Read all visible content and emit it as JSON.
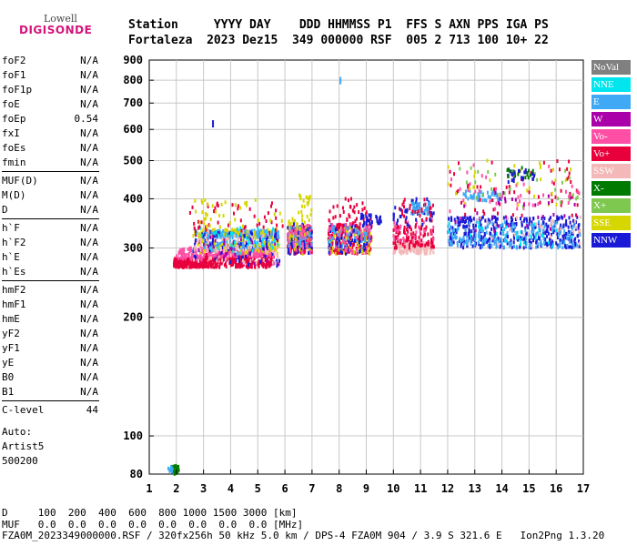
{
  "logo": {
    "top": "Lowell",
    "main": "DIGISONDE"
  },
  "header": {
    "line1": "Station     YYYY DAY    DDD HHMMSS P1  FFS S AXN PPS IGA PS",
    "line2": "Fortaleza  2023 Dez15  349 000000 RSF  005 2 713 100 10+ 22"
  },
  "params": [
    {
      "label": "foF2",
      "value": "N/A"
    },
    {
      "label": "foF1",
      "value": "N/A"
    },
    {
      "label": "foF1p",
      "value": "N/A"
    },
    {
      "label": "foE",
      "value": "N/A"
    },
    {
      "label": "foEp",
      "value": "0.54"
    },
    {
      "label": "fxI",
      "value": "N/A"
    },
    {
      "label": "foEs",
      "value": "N/A"
    },
    {
      "label": "fmin",
      "value": "N/A"
    },
    {
      "label": "MUF(D)",
      "value": "N/A"
    },
    {
      "label": "M(D)",
      "value": "N/A"
    },
    {
      "label": "D",
      "value": "N/A"
    },
    {
      "label": "h`F",
      "value": "N/A"
    },
    {
      "label": "h`F2",
      "value": "N/A"
    },
    {
      "label": "h`E",
      "value": "N/A"
    },
    {
      "label": "h`Es",
      "value": "N/A"
    },
    {
      "label": "hmF2",
      "value": "N/A"
    },
    {
      "label": "hmF1",
      "value": "N/A"
    },
    {
      "label": "hmE",
      "value": "N/A"
    },
    {
      "label": "yF2",
      "value": "N/A"
    },
    {
      "label": "yF1",
      "value": "N/A"
    },
    {
      "label": "yE",
      "value": "N/A"
    },
    {
      "label": "B0",
      "value": "N/A"
    },
    {
      "label": "B1",
      "value": "N/A"
    },
    {
      "label": "C-level",
      "value": "44"
    }
  ],
  "auto_lines": [
    "Auto:",
    "Artist5",
    "500200"
  ],
  "legend": [
    {
      "label": "NoVal",
      "bg": "#808080",
      "fg": "#ffffff"
    },
    {
      "label": "NNE",
      "bg": "#00e5ee",
      "fg": "#ffffff"
    },
    {
      "label": "E",
      "bg": "#3fa9f5",
      "fg": "#ffffff"
    },
    {
      "label": "W",
      "bg": "#aa00aa",
      "fg": "#ffffff"
    },
    {
      "label": "Vo-",
      "bg": "#ff4fa5",
      "fg": "#ffffff"
    },
    {
      "label": "Vo+",
      "bg": "#e8003d",
      "fg": "#ffffff"
    },
    {
      "label": "SSW",
      "bg": "#f4b8b8",
      "fg": "#ffffff"
    },
    {
      "label": "X-",
      "bg": "#007a00",
      "fg": "#ffffff"
    },
    {
      "label": "X+",
      "bg": "#7ec850",
      "fg": "#ffffff"
    },
    {
      "label": "SSE",
      "bg": "#d6d600",
      "fg": "#ffffff"
    },
    {
      "label": "NNW",
      "bg": "#1a1ad6",
      "fg": "#ffffff"
    }
  ],
  "footer": {
    "line1": "D     100  200  400  600  800 1000 1500 3000 [km]",
    "line2": "MUF   0.0  0.0  0.0  0.0  0.0  0.0  0.0  0.0 [MHz]",
    "line3": "FZA0M_2023349000000.RSF / 320fx256h 50 kHz 5.0 km / DPS-4 FZA0M 904 / 3.9 S 321.6 E   Ion2Png 1.3.20"
  },
  "chart_data": {
    "type": "scatter",
    "title": "",
    "xlabel": "",
    "ylabel": "",
    "xlim": [
      1,
      17
    ],
    "ylim": [
      80,
      900
    ],
    "y_scale": "log",
    "grid": true,
    "xticks": [
      1,
      2,
      3,
      4,
      5,
      6,
      7,
      8,
      9,
      10,
      11,
      12,
      13,
      14,
      15,
      16,
      17
    ],
    "yticks": [
      80,
      100,
      200,
      300,
      400,
      500,
      600,
      700,
      800,
      900
    ],
    "clusters": [
      {
        "x": [
          1.8,
          2.1
        ],
        "y": [
          80,
          84
        ],
        "n": 30,
        "color": "#007a00"
      },
      {
        "x": [
          1.7,
          1.9
        ],
        "y": [
          81,
          84
        ],
        "n": 10,
        "color": "#3fa9f5"
      },
      {
        "x": [
          1.9,
          3.0
        ],
        "y": [
          268,
          282
        ],
        "n": 220,
        "color": "#e8003d"
      },
      {
        "x": [
          2.0,
          3.0
        ],
        "y": [
          280,
          300
        ],
        "n": 80,
        "color": "#ff4fa5"
      },
      {
        "x": [
          3.0,
          5.6
        ],
        "y": [
          268,
          290
        ],
        "n": 320,
        "color": "#e8003d"
      },
      {
        "x": [
          3.0,
          5.6
        ],
        "y": [
          285,
          300
        ],
        "n": 160,
        "color": "#ff4fa5"
      },
      {
        "x": [
          3.0,
          5.6
        ],
        "y": [
          300,
          312
        ],
        "n": 120,
        "color": "#3fa9f5"
      },
      {
        "x": [
          3.0,
          5.8
        ],
        "y": [
          318,
          332
        ],
        "n": 200,
        "color": "#3fa9f5"
      },
      {
        "x": [
          2.6,
          5.8
        ],
        "y": [
          290,
          335
        ],
        "n": 140,
        "color": "#d6d600"
      },
      {
        "x": [
          2.6,
          5.8
        ],
        "y": [
          270,
          330
        ],
        "n": 60,
        "color": "#aa00aa"
      },
      {
        "x": [
          2.6,
          5.8
        ],
        "y": [
          270,
          330
        ],
        "n": 70,
        "color": "#1a1ad6"
      },
      {
        "x": [
          2.6,
          5.8
        ],
        "y": [
          275,
          330
        ],
        "n": 70,
        "color": "#f4b8b8"
      },
      {
        "x": [
          2.6,
          5.8
        ],
        "y": [
          290,
          340
        ],
        "n": 40,
        "color": "#00e5ee"
      },
      {
        "x": [
          2.5,
          6.0
        ],
        "y": [
          330,
          390
        ],
        "n": 45,
        "color": "#e8003d"
      },
      {
        "x": [
          2.5,
          6.0
        ],
        "y": [
          330,
          400
        ],
        "n": 40,
        "color": "#d6d600"
      },
      {
        "x": [
          6.1,
          7.0
        ],
        "y": [
          290,
          340
        ],
        "n": 180,
        "color": "#e8003d"
      },
      {
        "x": [
          6.1,
          7.0
        ],
        "y": [
          300,
          340
        ],
        "n": 90,
        "color": "#3fa9f5"
      },
      {
        "x": [
          6.1,
          7.0
        ],
        "y": [
          290,
          360
        ],
        "n": 60,
        "color": "#d6d600"
      },
      {
        "x": [
          6.1,
          7.0
        ],
        "y": [
          290,
          345
        ],
        "n": 40,
        "color": "#1a1ad6"
      },
      {
        "x": [
          6.1,
          7.0
        ],
        "y": [
          290,
          345
        ],
        "n": 40,
        "color": "#ff4fa5"
      },
      {
        "x": [
          6.5,
          7.0
        ],
        "y": [
          360,
          410
        ],
        "n": 20,
        "color": "#d6d600"
      },
      {
        "x": [
          7.6,
          9.2
        ],
        "y": [
          290,
          345
        ],
        "n": 220,
        "color": "#e8003d"
      },
      {
        "x": [
          7.6,
          9.2
        ],
        "y": [
          290,
          340
        ],
        "n": 70,
        "color": "#d6d600"
      },
      {
        "x": [
          7.6,
          9.2
        ],
        "y": [
          300,
          340
        ],
        "n": 60,
        "color": "#3fa9f5"
      },
      {
        "x": [
          7.6,
          9.2
        ],
        "y": [
          290,
          345
        ],
        "n": 50,
        "color": "#1a1ad6"
      },
      {
        "x": [
          7.6,
          9.2
        ],
        "y": [
          290,
          350
        ],
        "n": 40,
        "color": "#ff4fa5"
      },
      {
        "x": [
          7.6,
          9.2
        ],
        "y": [
          340,
          400
        ],
        "n": 40,
        "color": "#e8003d"
      },
      {
        "x": [
          8.8,
          9.6
        ],
        "y": [
          345,
          365
        ],
        "n": 30,
        "color": "#1a1ad6"
      },
      {
        "x": [
          10.0,
          11.5
        ],
        "y": [
          290,
          310
        ],
        "n": 120,
        "color": "#f4b8b8"
      },
      {
        "x": [
          10.0,
          11.5
        ],
        "y": [
          300,
          340
        ],
        "n": 100,
        "color": "#e8003d"
      },
      {
        "x": [
          10.0,
          11.5
        ],
        "y": [
          310,
          350
        ],
        "n": 30,
        "color": "#ff4fa5"
      },
      {
        "x": [
          10.0,
          11.5
        ],
        "y": [
          340,
          400
        ],
        "n": 45,
        "color": "#1a1ad6"
      },
      {
        "x": [
          10.6,
          11.4
        ],
        "y": [
          365,
          390
        ],
        "n": 40,
        "color": "#3fa9f5"
      },
      {
        "x": [
          10.0,
          11.5
        ],
        "y": [
          340,
          400
        ],
        "n": 30,
        "color": "#e8003d"
      },
      {
        "x": [
          12.0,
          16.9
        ],
        "y": [
          300,
          360
        ],
        "n": 360,
        "color": "#1a1ad6"
      },
      {
        "x": [
          12.0,
          16.9
        ],
        "y": [
          300,
          350
        ],
        "n": 180,
        "color": "#3fa9f5"
      },
      {
        "x": [
          12.5,
          14.0
        ],
        "y": [
          395,
          420
        ],
        "n": 50,
        "color": "#3fa9f5"
      },
      {
        "x": [
          12.0,
          16.9
        ],
        "y": [
          360,
          500
        ],
        "n": 60,
        "color": "#e8003d"
      },
      {
        "x": [
          12.0,
          16.9
        ],
        "y": [
          370,
          490
        ],
        "n": 40,
        "color": "#ff4fa5"
      },
      {
        "x": [
          12.0,
          16.9
        ],
        "y": [
          380,
          500
        ],
        "n": 30,
        "color": "#d6d600"
      },
      {
        "x": [
          12.0,
          16.9
        ],
        "y": [
          380,
          490
        ],
        "n": 25,
        "color": "#7ec850"
      },
      {
        "x": [
          12.0,
          16.9
        ],
        "y": [
          330,
          420
        ],
        "n": 30,
        "color": "#aa00aa"
      },
      {
        "x": [
          12.0,
          16.9
        ],
        "y": [
          300,
          350
        ],
        "n": 30,
        "color": "#00e5ee"
      },
      {
        "x": [
          13.0,
          16.9
        ],
        "y": [
          300,
          360
        ],
        "n": 30,
        "color": "#f4b8b8"
      },
      {
        "x": [
          14.2,
          15.2
        ],
        "y": [
          440,
          480
        ],
        "n": 25,
        "color": "#1a1ad6"
      },
      {
        "x": [
          14.2,
          15.2
        ],
        "y": [
          440,
          480
        ],
        "n": 15,
        "color": "#007a00"
      }
    ],
    "points": [
      {
        "x": 3.35,
        "y": 620,
        "color": "#1a1ad6"
      },
      {
        "x": 8.05,
        "y": 798,
        "color": "#3fa9f5"
      }
    ]
  }
}
